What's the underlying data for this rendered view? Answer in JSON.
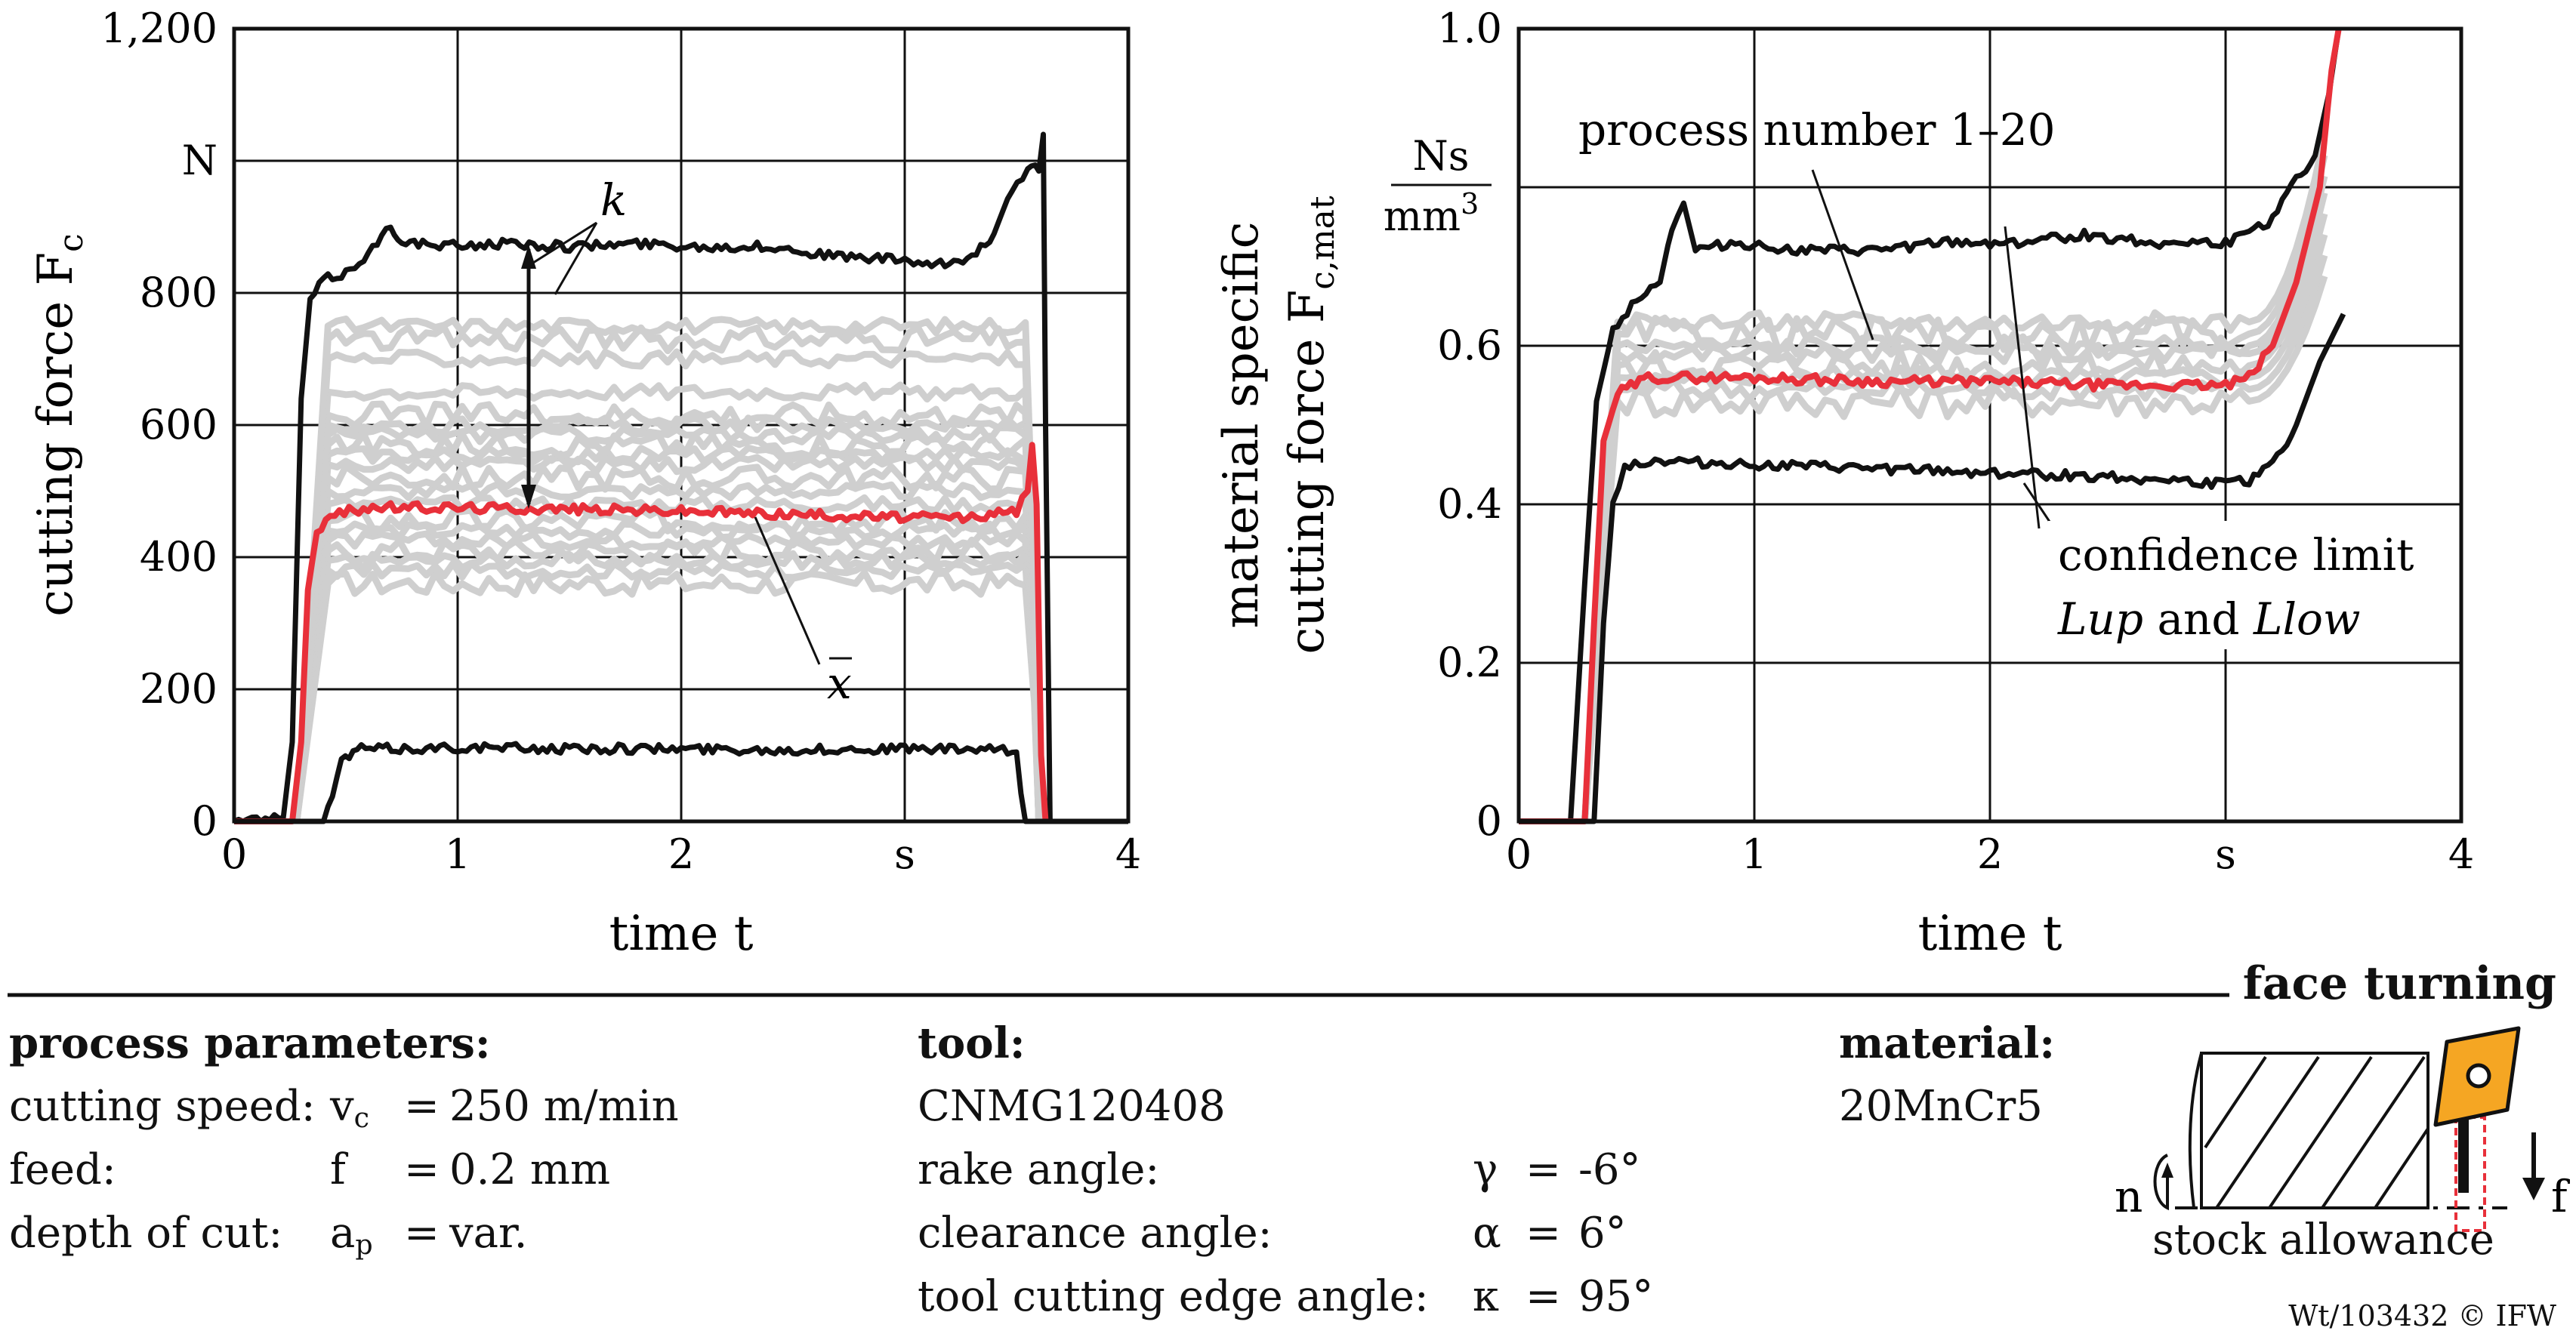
{
  "chart_data": [
    {
      "type": "line",
      "ylabel": "cutting force F",
      "ylabel_sub": "c",
      "xlabel": "time t",
      "xlim": [
        0,
        4
      ],
      "ylim": [
        0,
        1200
      ],
      "x_ticks": [
        "0",
        "1",
        "2",
        "s",
        "4"
      ],
      "y_ticks": [
        "0",
        "200",
        "400",
        "600",
        "800",
        "N",
        "1,200"
      ],
      "grid": true,
      "annotations": {
        "k": "k",
        "xbar": "x"
      },
      "series": [
        {
          "role": "confidence-upper",
          "color": "#111111",
          "points": [
            [
              0,
              0
            ],
            [
              0.22,
              5
            ],
            [
              0.26,
              120
            ],
            [
              0.3,
              640
            ],
            [
              0.34,
              790
            ],
            [
              0.4,
              820
            ],
            [
              0.5,
              830
            ],
            [
              0.6,
              860
            ],
            [
              0.7,
              900
            ],
            [
              0.75,
              880
            ],
            [
              0.9,
              870
            ],
            [
              1.2,
              875
            ],
            [
              1.5,
              870
            ],
            [
              1.8,
              875
            ],
            [
              2.1,
              870
            ],
            [
              2.4,
              870
            ],
            [
              2.7,
              855
            ],
            [
              3.0,
              850
            ],
            [
              3.1,
              840
            ],
            [
              3.2,
              845
            ],
            [
              3.3,
              855
            ],
            [
              3.4,
              890
            ],
            [
              3.48,
              960
            ],
            [
              3.55,
              985
            ],
            [
              3.6,
              990
            ],
            [
              3.62,
              1040
            ],
            [
              3.63,
              600
            ],
            [
              3.65,
              0
            ]
          ]
        },
        {
          "role": "mean",
          "color": "#e8303a",
          "points": [
            [
              0,
              0
            ],
            [
              0.26,
              0
            ],
            [
              0.3,
              120
            ],
            [
              0.33,
              350
            ],
            [
              0.37,
              440
            ],
            [
              0.45,
              465
            ],
            [
              0.6,
              475
            ],
            [
              1.0,
              475
            ],
            [
              1.5,
              473
            ],
            [
              2.0,
              470
            ],
            [
              2.5,
              465
            ],
            [
              3.0,
              460
            ],
            [
              3.3,
              460
            ],
            [
              3.5,
              470
            ],
            [
              3.55,
              500
            ],
            [
              3.57,
              570
            ],
            [
              3.59,
              480
            ],
            [
              3.61,
              100
            ],
            [
              3.63,
              0
            ]
          ]
        },
        {
          "role": "confidence-lower",
          "color": "#111111",
          "points": [
            [
              0,
              0
            ],
            [
              0.4,
              0
            ],
            [
              0.44,
              40
            ],
            [
              0.48,
              90
            ],
            [
              0.55,
              110
            ],
            [
              0.8,
              110
            ],
            [
              1.0,
              112
            ],
            [
              1.5,
              110
            ],
            [
              2.0,
              110
            ],
            [
              2.5,
              108
            ],
            [
              3.0,
              110
            ],
            [
              3.4,
              108
            ],
            [
              3.5,
              105
            ],
            [
              3.52,
              40
            ],
            [
              3.54,
              0
            ],
            [
              4.0,
              0
            ]
          ]
        }
      ],
      "process_curves_levels": [
        360,
        380,
        395,
        410,
        425,
        440,
        455,
        480,
        500,
        520,
        540,
        555,
        570,
        585,
        600,
        615,
        650,
        700,
        730,
        750
      ]
    },
    {
      "type": "line",
      "ylabel_line1": "material specific",
      "ylabel_line2": "cutting force F",
      "ylabel_sub": "c,mat",
      "xlabel": "time t",
      "xlim": [
        0,
        4
      ],
      "ylim": [
        0,
        1.0
      ],
      "x_ticks": [
        "0",
        "1",
        "2",
        "s",
        "4"
      ],
      "y_ticks": [
        "0",
        "0.2",
        "0.4",
        "0.6",
        "1.0"
      ],
      "unit_num": "Ns",
      "unit_den": "mm",
      "unit_den_exp": "3",
      "grid": true,
      "annotations": {
        "process": "process number 1–20",
        "conf": "confidence limit",
        "lup": "Lup",
        "and": "and",
        "llow": "Llow"
      },
      "series": [
        {
          "role": "confidence-upper",
          "color": "#111111",
          "points": [
            [
              0,
              0
            ],
            [
              0.22,
              0
            ],
            [
              0.28,
              0.3
            ],
            [
              0.33,
              0.53
            ],
            [
              0.4,
              0.62
            ],
            [
              0.5,
              0.66
            ],
            [
              0.6,
              0.68
            ],
            [
              0.65,
              0.75
            ],
            [
              0.7,
              0.78
            ],
            [
              0.75,
              0.72
            ],
            [
              0.9,
              0.73
            ],
            [
              1.2,
              0.72
            ],
            [
              1.5,
              0.72
            ],
            [
              1.8,
              0.73
            ],
            [
              2.1,
              0.73
            ],
            [
              2.4,
              0.74
            ],
            [
              2.7,
              0.73
            ],
            [
              3.0,
              0.73
            ],
            [
              3.1,
              0.74
            ],
            [
              3.2,
              0.76
            ],
            [
              3.3,
              0.81
            ],
            [
              3.38,
              0.84
            ],
            [
              3.44,
              0.92
            ],
            [
              3.48,
              1.0
            ]
          ]
        },
        {
          "role": "mean",
          "color": "#e8303a",
          "points": [
            [
              0,
              0
            ],
            [
              0.28,
              0
            ],
            [
              0.32,
              0.25
            ],
            [
              0.36,
              0.48
            ],
            [
              0.42,
              0.54
            ],
            [
              0.55,
              0.56
            ],
            [
              1.0,
              0.56
            ],
            [
              1.5,
              0.555
            ],
            [
              2.0,
              0.555
            ],
            [
              2.5,
              0.55
            ],
            [
              3.0,
              0.55
            ],
            [
              3.1,
              0.56
            ],
            [
              3.2,
              0.6
            ],
            [
              3.3,
              0.68
            ],
            [
              3.4,
              0.8
            ],
            [
              3.45,
              0.95
            ],
            [
              3.48,
              1.0
            ]
          ]
        },
        {
          "role": "confidence-lower",
          "color": "#111111",
          "points": [
            [
              0,
              0
            ],
            [
              0.32,
              0
            ],
            [
              0.36,
              0.25
            ],
            [
              0.4,
              0.4
            ],
            [
              0.45,
              0.45
            ],
            [
              0.6,
              0.455
            ],
            [
              1.0,
              0.45
            ],
            [
              1.5,
              0.445
            ],
            [
              2.0,
              0.44
            ],
            [
              2.5,
              0.435
            ],
            [
              2.8,
              0.43
            ],
            [
              3.0,
              0.425
            ],
            [
              3.1,
              0.43
            ],
            [
              3.2,
              0.45
            ],
            [
              3.3,
              0.5
            ],
            [
              3.4,
              0.58
            ],
            [
              3.5,
              0.64
            ]
          ]
        }
      ],
      "process_curves_levels": [
        0.53,
        0.545,
        0.56,
        0.575,
        0.59,
        0.6,
        0.615,
        0.63
      ]
    }
  ],
  "params": {
    "title": "process parameters:",
    "rows": [
      {
        "label": "cutting speed:",
        "sym": "v",
        "sub": "c",
        "eq": "=",
        "val": "250 m/min"
      },
      {
        "label": "feed:",
        "sym": "f",
        "sub": "",
        "eq": "=",
        "val": "0.2 mm"
      },
      {
        "label": "depth of cut:",
        "sym": "a",
        "sub": "p",
        "eq": "=",
        "val": "var."
      }
    ]
  },
  "tool": {
    "title": "tool:",
    "name": "CNMG120408",
    "rows": [
      {
        "label": "rake angle:",
        "sym": "γ",
        "eq": "=",
        "val": "-6°"
      },
      {
        "label": "clearance angle:",
        "sym": "α",
        "eq": "=",
        "val": "6°"
      },
      {
        "label": "tool cutting edge angle:",
        "sym": "κ",
        "eq": "=",
        "val": "95°"
      }
    ]
  },
  "material": {
    "title": "material:",
    "value": "20MnCr5"
  },
  "schematic": {
    "title": "face turning",
    "stock": "stock allowance",
    "n": "n",
    "f": "f",
    "insert_color": "#f5a623"
  },
  "watermark": "Wt/103432 © IFW"
}
